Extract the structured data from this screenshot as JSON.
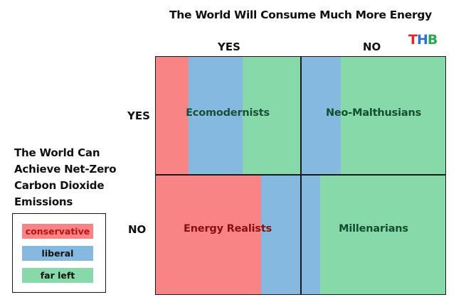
{
  "title": "The World Will Consume Much More Energy",
  "logo": {
    "letters": [
      "T",
      "H",
      "B"
    ],
    "colors": [
      "#e0282a",
      "#2e6fd6",
      "#2ea84a"
    ]
  },
  "columns": {
    "yes": "YES",
    "no": "NO"
  },
  "rows": {
    "yes": "YES",
    "no": "NO"
  },
  "row_axis_label": [
    "The World Can",
    "Achieve Net-Zero",
    "Carbon Dioxide",
    "Emissions"
  ],
  "colors": {
    "conservative": "#f88486",
    "liberal": "#86b9df",
    "far_left": "#88d9a9"
  },
  "cells": {
    "top_left": {
      "label": "Ecomodernists",
      "shares": {
        "conservative": 0.23,
        "liberal": 0.37,
        "far_left": 0.4
      }
    },
    "top_right": {
      "label": "Neo-Malthusians",
      "shares": {
        "conservative": 0.0,
        "liberal": 0.27,
        "far_left": 0.73
      }
    },
    "bottom_left": {
      "label": "Energy Realists",
      "shares": {
        "conservative": 0.73,
        "liberal": 0.27,
        "far_left": 0.0
      }
    },
    "bottom_right": {
      "label": "Millenarians",
      "shares": {
        "conservative": 0.0,
        "liberal": 0.13,
        "far_left": 0.87
      }
    }
  },
  "legend": {
    "conservative": "conservative",
    "liberal": "liberal",
    "far_left": "far left"
  }
}
